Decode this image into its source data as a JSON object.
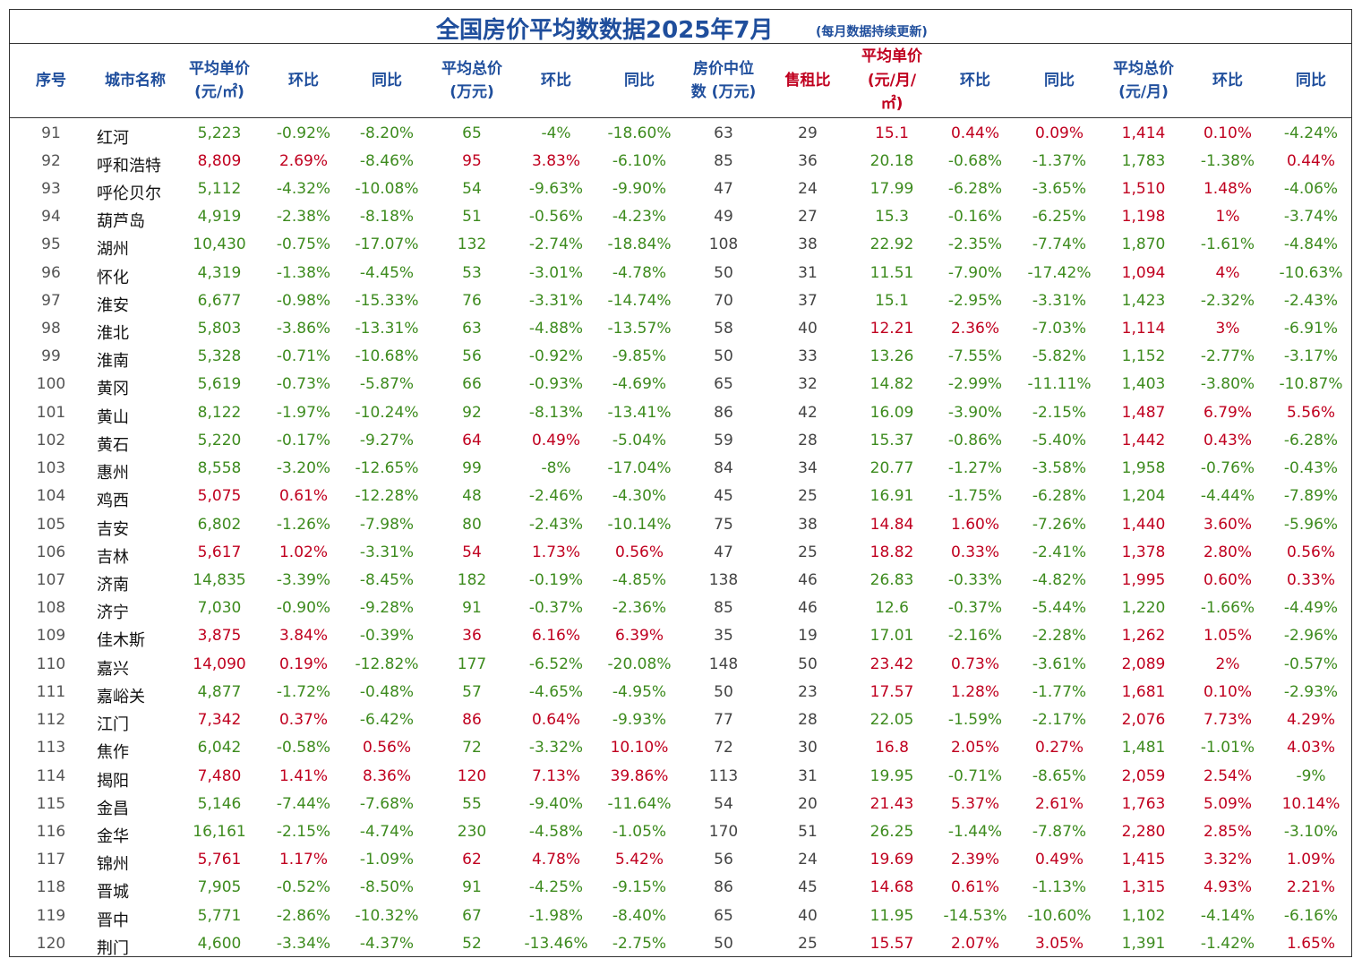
{
  "header": {
    "title": "全国房价平均数数据2025年7月",
    "subtitle": "(每月数据持续更新)"
  },
  "columns": [
    {
      "lines": [
        "序号"
      ],
      "color": "blue"
    },
    {
      "lines": [
        "城市名称"
      ],
      "color": "blue"
    },
    {
      "lines": [
        "平均单价",
        "(元/㎡)"
      ],
      "color": "blue"
    },
    {
      "lines": [
        "环比"
      ],
      "color": "blue"
    },
    {
      "lines": [
        "同比"
      ],
      "color": "blue"
    },
    {
      "lines": [
        "平均总价",
        "(万元)"
      ],
      "color": "blue"
    },
    {
      "lines": [
        "环比"
      ],
      "color": "blue"
    },
    {
      "lines": [
        "同比"
      ],
      "color": "blue"
    },
    {
      "lines": [
        "房价中位",
        "数 (万元)"
      ],
      "color": "blue"
    },
    {
      "lines": [
        "售租比"
      ],
      "color": "red"
    },
    {
      "lines": [
        "平均单价",
        "(元/月/",
        "㎡)"
      ],
      "color": "red"
    },
    {
      "lines": [
        "环比"
      ],
      "color": "blue"
    },
    {
      "lines": [
        "同比"
      ],
      "color": "blue"
    },
    {
      "lines": [
        "平均总价",
        "(元/月)"
      ],
      "color": "blue"
    },
    {
      "lines": [
        "环比"
      ],
      "color": "blue"
    },
    {
      "lines": [
        "同比"
      ],
      "color": "blue"
    }
  ],
  "rows": [
    [
      "91",
      "红河",
      "5,223",
      "-0.92%",
      "-8.20%",
      "65",
      "-4%",
      "-18.60%",
      "63",
      "29",
      "15.1",
      "0.44%",
      "0.09%",
      "1,414",
      "0.10%",
      "-4.24%"
    ],
    [
      "92",
      "呼和浩特",
      "8,809",
      "2.69%",
      "-8.46%",
      "95",
      "3.83%",
      "-6.10%",
      "85",
      "36",
      "20.18",
      "-0.68%",
      "-1.37%",
      "1,783",
      "-1.38%",
      "0.44%"
    ],
    [
      "93",
      "呼伦贝尔",
      "5,112",
      "-4.32%",
      "-10.08%",
      "54",
      "-9.63%",
      "-9.90%",
      "47",
      "24",
      "17.99",
      "-6.28%",
      "-3.65%",
      "1,510",
      "1.48%",
      "-4.06%"
    ],
    [
      "94",
      "葫芦岛",
      "4,919",
      "-2.38%",
      "-8.18%",
      "51",
      "-0.56%",
      "-4.23%",
      "49",
      "27",
      "15.3",
      "-0.16%",
      "-6.25%",
      "1,198",
      "1%",
      "-3.74%"
    ],
    [
      "95",
      "湖州",
      "10,430",
      "-0.75%",
      "-17.07%",
      "132",
      "-2.74%",
      "-18.84%",
      "108",
      "38",
      "22.92",
      "-2.35%",
      "-7.74%",
      "1,870",
      "-1.61%",
      "-4.84%"
    ],
    [
      "96",
      "怀化",
      "4,319",
      "-1.38%",
      "-4.45%",
      "53",
      "-3.01%",
      "-4.78%",
      "50",
      "31",
      "11.51",
      "-7.90%",
      "-17.42%",
      "1,094",
      "4%",
      "-10.63%"
    ],
    [
      "97",
      "淮安",
      "6,677",
      "-0.98%",
      "-15.33%",
      "76",
      "-3.31%",
      "-14.74%",
      "70",
      "37",
      "15.1",
      "-2.95%",
      "-3.31%",
      "1,423",
      "-2.32%",
      "-2.43%"
    ],
    [
      "98",
      "淮北",
      "5,803",
      "-3.86%",
      "-13.31%",
      "63",
      "-4.88%",
      "-13.57%",
      "58",
      "40",
      "12.21",
      "2.36%",
      "-7.03%",
      "1,114",
      "3%",
      "-6.91%"
    ],
    [
      "99",
      "淮南",
      "5,328",
      "-0.71%",
      "-10.68%",
      "56",
      "-0.92%",
      "-9.85%",
      "50",
      "33",
      "13.26",
      "-7.55%",
      "-5.82%",
      "1,152",
      "-2.77%",
      "-3.17%"
    ],
    [
      "100",
      "黄冈",
      "5,619",
      "-0.73%",
      "-5.87%",
      "66",
      "-0.93%",
      "-4.69%",
      "65",
      "32",
      "14.82",
      "-2.99%",
      "-11.11%",
      "1,403",
      "-3.80%",
      "-10.87%"
    ],
    [
      "101",
      "黄山",
      "8,122",
      "-1.97%",
      "-10.24%",
      "92",
      "-8.13%",
      "-13.41%",
      "86",
      "42",
      "16.09",
      "-3.90%",
      "-2.15%",
      "1,487",
      "6.79%",
      "5.56%"
    ],
    [
      "102",
      "黄石",
      "5,220",
      "-0.17%",
      "-9.27%",
      "64",
      "0.49%",
      "-5.04%",
      "59",
      "28",
      "15.37",
      "-0.86%",
      "-5.40%",
      "1,442",
      "0.43%",
      "-6.28%"
    ],
    [
      "103",
      "惠州",
      "8,558",
      "-3.20%",
      "-12.65%",
      "99",
      "-8%",
      "-17.04%",
      "84",
      "34",
      "20.77",
      "-1.27%",
      "-3.58%",
      "1,958",
      "-0.76%",
      "-0.43%"
    ],
    [
      "104",
      "鸡西",
      "5,075",
      "0.61%",
      "-12.28%",
      "48",
      "-2.46%",
      "-4.30%",
      "45",
      "25",
      "16.91",
      "-1.75%",
      "-6.28%",
      "1,204",
      "-4.44%",
      "-7.89%"
    ],
    [
      "105",
      "吉安",
      "6,802",
      "-1.26%",
      "-7.98%",
      "80",
      "-2.43%",
      "-10.14%",
      "75",
      "38",
      "14.84",
      "1.60%",
      "-7.26%",
      "1,440",
      "3.60%",
      "-5.96%"
    ],
    [
      "106",
      "吉林",
      "5,617",
      "1.02%",
      "-3.31%",
      "54",
      "1.73%",
      "0.56%",
      "47",
      "25",
      "18.82",
      "0.33%",
      "-2.41%",
      "1,378",
      "2.80%",
      "0.56%"
    ],
    [
      "107",
      "济南",
      "14,835",
      "-3.39%",
      "-8.45%",
      "182",
      "-0.19%",
      "-4.85%",
      "138",
      "46",
      "26.83",
      "-0.33%",
      "-4.82%",
      "1,995",
      "0.60%",
      "0.33%"
    ],
    [
      "108",
      "济宁",
      "7,030",
      "-0.90%",
      "-9.28%",
      "91",
      "-0.37%",
      "-2.36%",
      "85",
      "46",
      "12.6",
      "-0.37%",
      "-5.44%",
      "1,220",
      "-1.66%",
      "-4.49%"
    ],
    [
      "109",
      "佳木斯",
      "3,875",
      "3.84%",
      "-0.39%",
      "36",
      "6.16%",
      "6.39%",
      "35",
      "19",
      "17.01",
      "-2.16%",
      "-2.28%",
      "1,262",
      "1.05%",
      "-2.96%"
    ],
    [
      "110",
      "嘉兴",
      "14,090",
      "0.19%",
      "-12.82%",
      "177",
      "-6.52%",
      "-20.08%",
      "148",
      "50",
      "23.42",
      "0.73%",
      "-3.61%",
      "2,089",
      "2%",
      "-0.57%"
    ],
    [
      "111",
      "嘉峪关",
      "4,877",
      "-1.72%",
      "-0.48%",
      "57",
      "-4.65%",
      "-4.95%",
      "50",
      "23",
      "17.57",
      "1.28%",
      "-1.77%",
      "1,681",
      "0.10%",
      "-2.93%"
    ],
    [
      "112",
      "江门",
      "7,342",
      "0.37%",
      "-6.42%",
      "86",
      "0.64%",
      "-9.93%",
      "77",
      "28",
      "22.05",
      "-1.59%",
      "-2.17%",
      "2,076",
      "7.73%",
      "4.29%"
    ],
    [
      "113",
      "焦作",
      "6,042",
      "-0.58%",
      "0.56%",
      "72",
      "-3.32%",
      "10.10%",
      "72",
      "30",
      "16.8",
      "2.05%",
      "0.27%",
      "1,481",
      "-1.01%",
      "4.03%"
    ],
    [
      "114",
      "揭阳",
      "7,480",
      "1.41%",
      "8.36%",
      "120",
      "7.13%",
      "39.86%",
      "113",
      "31",
      "19.95",
      "-0.71%",
      "-8.65%",
      "2,059",
      "2.54%",
      "-9%"
    ],
    [
      "115",
      "金昌",
      "5,146",
      "-7.44%",
      "-7.68%",
      "55",
      "-9.40%",
      "-11.64%",
      "54",
      "20",
      "21.43",
      "5.37%",
      "2.61%",
      "1,763",
      "5.09%",
      "10.14%"
    ],
    [
      "116",
      "金华",
      "16,161",
      "-2.15%",
      "-4.74%",
      "230",
      "-4.58%",
      "-1.05%",
      "170",
      "51",
      "26.25",
      "-1.44%",
      "-7.87%",
      "2,280",
      "2.85%",
      "-3.10%"
    ],
    [
      "117",
      "锦州",
      "5,761",
      "1.17%",
      "-1.09%",
      "62",
      "4.78%",
      "5.42%",
      "56",
      "24",
      "19.69",
      "2.39%",
      "0.49%",
      "1,415",
      "3.32%",
      "1.09%"
    ],
    [
      "118",
      "晋城",
      "7,905",
      "-0.52%",
      "-8.50%",
      "91",
      "-4.25%",
      "-9.15%",
      "86",
      "45",
      "14.68",
      "0.61%",
      "-1.13%",
      "1,315",
      "4.93%",
      "2.21%"
    ],
    [
      "119",
      "晋中",
      "5,771",
      "-2.86%",
      "-10.32%",
      "67",
      "-1.98%",
      "-8.40%",
      "65",
      "40",
      "11.95",
      "-14.53%",
      "-10.60%",
      "1,102",
      "-4.14%",
      "-6.16%"
    ],
    [
      "120",
      "荆门",
      "4,600",
      "-3.34%",
      "-4.37%",
      "52",
      "-13.46%",
      "-2.75%",
      "50",
      "25",
      "15.57",
      "2.07%",
      "3.05%",
      "1,391",
      "-1.42%",
      "1.65%"
    ]
  ],
  "colors": {
    "header_blue": "#1f4e9c",
    "header_red": "#c0001f",
    "positive": "#c0001f",
    "negative": "#3d8b1e",
    "neutral": "#444444"
  }
}
